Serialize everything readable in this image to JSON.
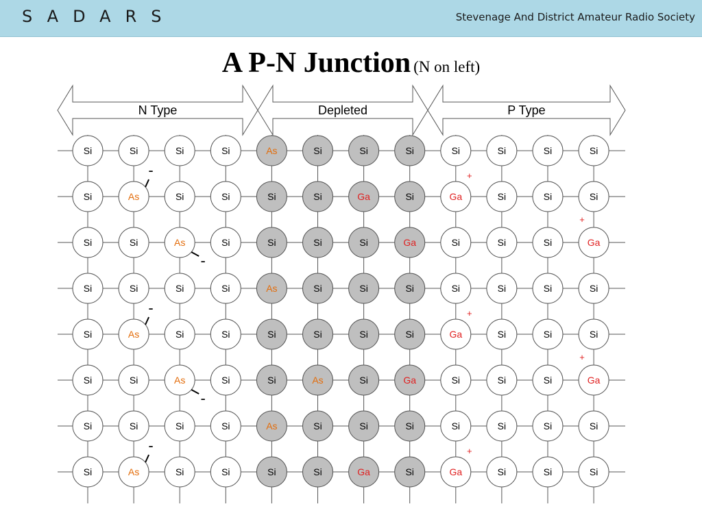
{
  "header": {
    "logo": "SADARS",
    "society": "Stevenage And District Amateur Radio Society"
  },
  "title": {
    "main": "A P-N Junction",
    "sub": "(N on left)"
  },
  "regions": [
    {
      "label": "N Type",
      "cols": [
        0,
        3
      ]
    },
    {
      "label": "Depleted",
      "cols": [
        4,
        7
      ]
    },
    {
      "label": "P Type",
      "cols": [
        8,
        11
      ]
    }
  ],
  "colors": {
    "si": "#000000",
    "as": "#e36c0a",
    "ga": "#e02020",
    "depleted_fill": "#bfbfbf",
    "normal_fill": "#ffffff",
    "banner": "#add8e6"
  },
  "grid": [
    [
      "Si",
      "Si",
      "Si",
      "Si",
      "As",
      "Si",
      "Si",
      "Si",
      "Si",
      "Si",
      "Si",
      "Si"
    ],
    [
      "Si",
      "As",
      "Si",
      "Si",
      "Si",
      "Si",
      "Ga",
      "Si",
      "Ga",
      "Si",
      "Si",
      "Si"
    ],
    [
      "Si",
      "Si",
      "As",
      "Si",
      "Si",
      "Si",
      "Si",
      "Ga",
      "Si",
      "Si",
      "Si",
      "Ga"
    ],
    [
      "Si",
      "Si",
      "Si",
      "Si",
      "As",
      "Si",
      "Si",
      "Si",
      "Si",
      "Si",
      "Si",
      "Si"
    ],
    [
      "Si",
      "As",
      "Si",
      "Si",
      "Si",
      "Si",
      "Si",
      "Si",
      "Ga",
      "Si",
      "Si",
      "Si"
    ],
    [
      "Si",
      "Si",
      "As",
      "Si",
      "Si",
      "As",
      "Si",
      "Ga",
      "Si",
      "Si",
      "Si",
      "Ga"
    ],
    [
      "Si",
      "Si",
      "Si",
      "Si",
      "As",
      "Si",
      "Si",
      "Si",
      "Si",
      "Si",
      "Si",
      "Si"
    ],
    [
      "Si",
      "As",
      "Si",
      "Si",
      "Si",
      "Si",
      "Ga",
      "Si",
      "Ga",
      "Si",
      "Si",
      "Si"
    ]
  ],
  "free_electrons": [
    {
      "row": 1,
      "col": 1,
      "symbol": "-"
    },
    {
      "row": 2,
      "col": 2,
      "symbol": "-"
    },
    {
      "row": 4,
      "col": 1,
      "symbol": "-"
    },
    {
      "row": 5,
      "col": 2,
      "symbol": "-"
    },
    {
      "row": 7,
      "col": 1,
      "symbol": "-"
    }
  ],
  "holes": [
    {
      "row": 1,
      "col": 8,
      "symbol": "+"
    },
    {
      "row": 2,
      "col": 11,
      "symbol": "+"
    },
    {
      "row": 4,
      "col": 8,
      "symbol": "+"
    },
    {
      "row": 5,
      "col": 11,
      "symbol": "+"
    },
    {
      "row": 7,
      "col": 8,
      "symbol": "+"
    }
  ]
}
